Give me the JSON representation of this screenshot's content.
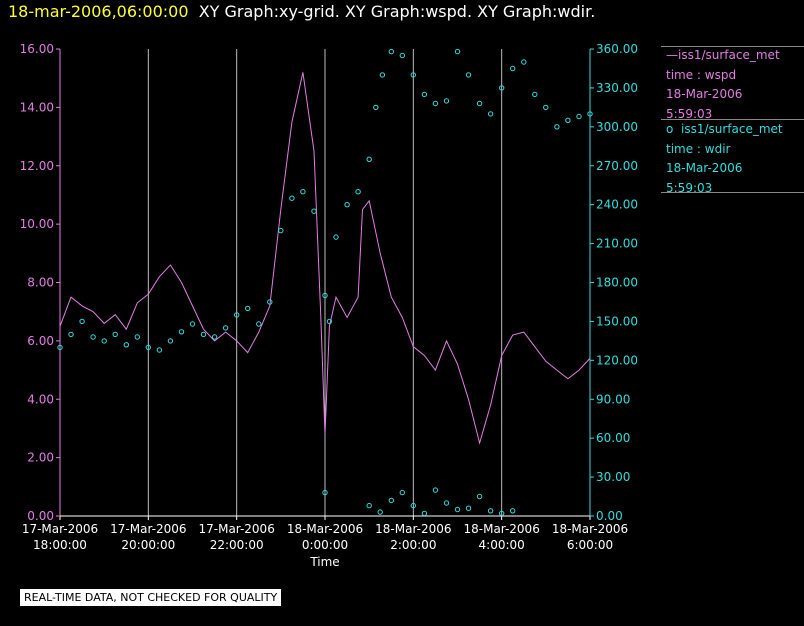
{
  "header": {
    "timestamp": "18-mar-2006,06:00:00",
    "titles": "XY Graph:xy-grid.  XY Graph:wspd.  XY Graph:wdir."
  },
  "legend": {
    "series1": {
      "name": "iss1/surface_met",
      "var": "time : wspd",
      "date": "18-Mar-2006",
      "time": "5:59:03"
    },
    "series2": {
      "name": "iss1/surface_met",
      "var": "time : wdir",
      "date": "18-Mar-2006",
      "time": "5:59:03"
    }
  },
  "disclaimer": "REAL-TIME DATA, NOT CHECKED FOR QUALITY",
  "colors": {
    "wspd": "#e27ee2",
    "wdir": "#33dddd",
    "grid": "#bbbbbb",
    "axis": "#ffffff"
  },
  "chart_data": {
    "type": "line",
    "xlabel": "Time",
    "x_ticks": [
      {
        "hours": 0,
        "label": [
          "17-Mar-2006",
          "18:00:00"
        ]
      },
      {
        "hours": 2,
        "label": [
          "17-Mar-2006",
          "20:00:00"
        ]
      },
      {
        "hours": 4,
        "label": [
          "17-Mar-2006",
          "22:00:00"
        ]
      },
      {
        "hours": 6,
        "label": [
          "18-Mar-2006",
          "0:00:00"
        ]
      },
      {
        "hours": 8,
        "label": [
          "18-Mar-2006",
          "2:00:00"
        ]
      },
      {
        "hours": 10,
        "label": [
          "18-Mar-2006",
          "4:00:00"
        ]
      },
      {
        "hours": 12,
        "label": [
          "18-Mar-2006",
          "6:00:00"
        ]
      }
    ],
    "xlim_hours": [
      0,
      12
    ],
    "y_left": {
      "min": 0,
      "max": 16,
      "ticks": [
        "0.00",
        "2.00",
        "4.00",
        "6.00",
        "8.00",
        "10.00",
        "12.00",
        "14.00",
        "16.00"
      ]
    },
    "y_right": {
      "min": 0,
      "max": 360,
      "ticks": [
        "0.00",
        "30.00",
        "60.00",
        "90.00",
        "120.00",
        "150.00",
        "180.00",
        "210.00",
        "240.00",
        "270.00",
        "300.00",
        "330.00",
        "360.00"
      ]
    },
    "series": [
      {
        "variable": "wspd",
        "axis": "left",
        "style": "line",
        "points": [
          [
            0.0,
            6.5
          ],
          [
            0.25,
            7.5
          ],
          [
            0.5,
            7.2
          ],
          [
            0.75,
            7.0
          ],
          [
            1.0,
            6.6
          ],
          [
            1.25,
            6.9
          ],
          [
            1.5,
            6.4
          ],
          [
            1.75,
            7.3
          ],
          [
            2.0,
            7.6
          ],
          [
            2.25,
            8.2
          ],
          [
            2.5,
            8.6
          ],
          [
            2.75,
            8.0
          ],
          [
            3.0,
            7.2
          ],
          [
            3.25,
            6.4
          ],
          [
            3.5,
            6.0
          ],
          [
            3.75,
            6.3
          ],
          [
            4.0,
            6.0
          ],
          [
            4.25,
            5.6
          ],
          [
            4.5,
            6.3
          ],
          [
            4.75,
            7.2
          ],
          [
            5.0,
            10.5
          ],
          [
            5.25,
            13.5
          ],
          [
            5.5,
            15.2
          ],
          [
            5.75,
            12.5
          ],
          [
            5.9,
            7.0
          ],
          [
            6.0,
            2.8
          ],
          [
            6.1,
            6.5
          ],
          [
            6.25,
            7.5
          ],
          [
            6.5,
            6.8
          ],
          [
            6.75,
            7.5
          ],
          [
            6.85,
            10.5
          ],
          [
            7.0,
            10.8
          ],
          [
            7.25,
            9.0
          ],
          [
            7.5,
            7.5
          ],
          [
            7.75,
            6.8
          ],
          [
            8.0,
            5.8
          ],
          [
            8.25,
            5.5
          ],
          [
            8.5,
            5.0
          ],
          [
            8.75,
            6.0
          ],
          [
            9.0,
            5.2
          ],
          [
            9.25,
            4.0
          ],
          [
            9.5,
            2.5
          ],
          [
            9.75,
            3.8
          ],
          [
            10.0,
            5.5
          ],
          [
            10.25,
            6.2
          ],
          [
            10.5,
            6.3
          ],
          [
            10.75,
            5.8
          ],
          [
            11.0,
            5.3
          ],
          [
            11.25,
            5.0
          ],
          [
            11.5,
            4.7
          ],
          [
            11.75,
            5.0
          ],
          [
            12.0,
            5.4
          ]
        ]
      },
      {
        "variable": "wdir",
        "axis": "right",
        "style": "points",
        "points": [
          [
            0.0,
            130
          ],
          [
            0.25,
            140
          ],
          [
            0.5,
            150
          ],
          [
            0.75,
            138
          ],
          [
            1.0,
            135
          ],
          [
            1.25,
            140
          ],
          [
            1.5,
            132
          ],
          [
            1.75,
            138
          ],
          [
            2.0,
            130
          ],
          [
            2.25,
            128
          ],
          [
            2.5,
            135
          ],
          [
            2.75,
            142
          ],
          [
            3.0,
            148
          ],
          [
            3.25,
            140
          ],
          [
            3.5,
            138
          ],
          [
            3.75,
            145
          ],
          [
            4.0,
            155
          ],
          [
            4.25,
            160
          ],
          [
            4.5,
            148
          ],
          [
            4.75,
            165
          ],
          [
            5.0,
            220
          ],
          [
            5.25,
            245
          ],
          [
            5.5,
            250
          ],
          [
            5.75,
            235
          ],
          [
            6.0,
            170
          ],
          [
            6.1,
            150
          ],
          [
            6.25,
            215
          ],
          [
            6.5,
            240
          ],
          [
            6.75,
            250
          ],
          [
            7.0,
            275
          ],
          [
            7.15,
            315
          ],
          [
            7.3,
            340
          ],
          [
            7.5,
            358
          ],
          [
            7.75,
            355
          ],
          [
            8.0,
            340
          ],
          [
            8.25,
            325
          ],
          [
            8.5,
            318
          ],
          [
            8.75,
            320
          ],
          [
            9.0,
            358
          ],
          [
            9.25,
            340
          ],
          [
            9.5,
            318
          ],
          [
            9.75,
            310
          ],
          [
            10.0,
            330
          ],
          [
            10.25,
            345
          ],
          [
            10.5,
            350
          ],
          [
            10.75,
            325
          ],
          [
            11.0,
            315
          ],
          [
            11.25,
            300
          ],
          [
            11.5,
            305
          ],
          [
            11.75,
            308
          ],
          [
            12.0,
            310
          ],
          [
            7.0,
            8
          ],
          [
            7.25,
            3
          ],
          [
            7.5,
            12
          ],
          [
            7.75,
            18
          ],
          [
            8.0,
            8
          ],
          [
            8.25,
            2
          ],
          [
            8.5,
            20
          ],
          [
            8.75,
            10
          ],
          [
            9.0,
            5
          ],
          [
            9.25,
            6
          ],
          [
            9.5,
            15
          ],
          [
            9.75,
            4
          ],
          [
            10.0,
            2
          ],
          [
            10.25,
            4
          ],
          [
            6.0,
            18
          ]
        ]
      }
    ]
  }
}
